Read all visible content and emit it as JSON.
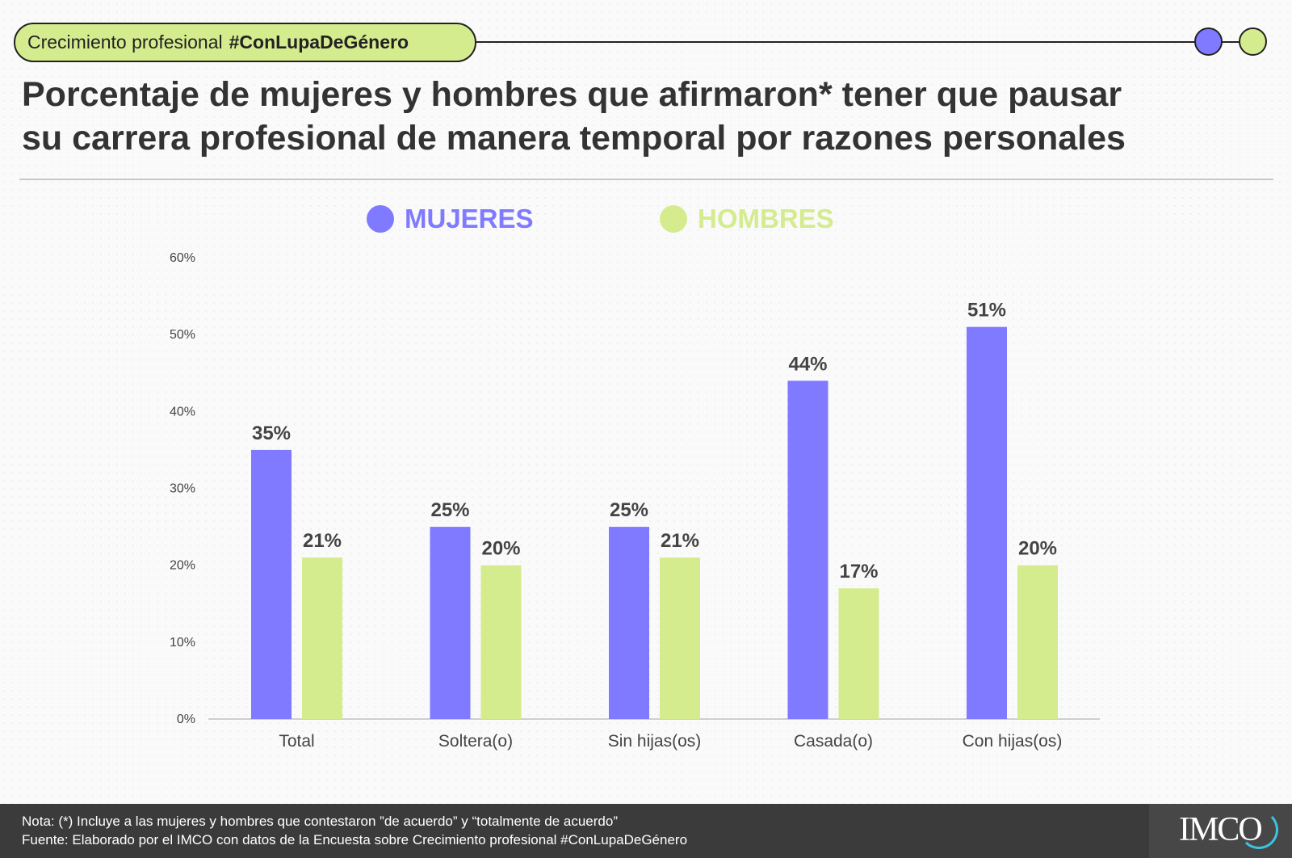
{
  "header": {
    "tag_prefix": "Crecimiento profesional",
    "tag_hashtag": "#ConLupaDeGénero"
  },
  "chart_data": {
    "type": "bar",
    "title_line1": "Porcentaje de mujeres y hombres que afirmaron* tener que pausar",
    "title_line2": "su carrera profesional de manera temporal por razones personales",
    "categories": [
      "Total",
      "Soltera(o)",
      "Sin hijas(os)",
      "Casada(o)",
      "Con hijas(os)"
    ],
    "series": [
      {
        "name": "MUJERES",
        "color": "#7f7aff",
        "values": [
          35,
          25,
          25,
          44,
          51
        ],
        "labels": [
          "35%",
          "25%",
          "25%",
          "44%",
          "51%"
        ]
      },
      {
        "name": "HOMBRES",
        "color": "#d4ec8e",
        "values": [
          21,
          20,
          21,
          17,
          20
        ],
        "labels": [
          "21%",
          "20%",
          "21%",
          "17%",
          "20%"
        ]
      }
    ],
    "ylim": [
      0,
      60
    ],
    "yticks": [
      "0%",
      "10%",
      "20%",
      "30%",
      "40%",
      "50%",
      "60%"
    ],
    "legend": "top",
    "grid": false
  },
  "footer": {
    "note": "Nota: (*) Incluye a las mujeres y hombres que contestaron ”de acuerdo” y “totalmente de acuerdo”",
    "source": "Fuente: Elaborado por el IMCO con datos de la Encuesta sobre Crecimiento profesional #ConLupaDeGénero",
    "logo": "IMCO"
  }
}
